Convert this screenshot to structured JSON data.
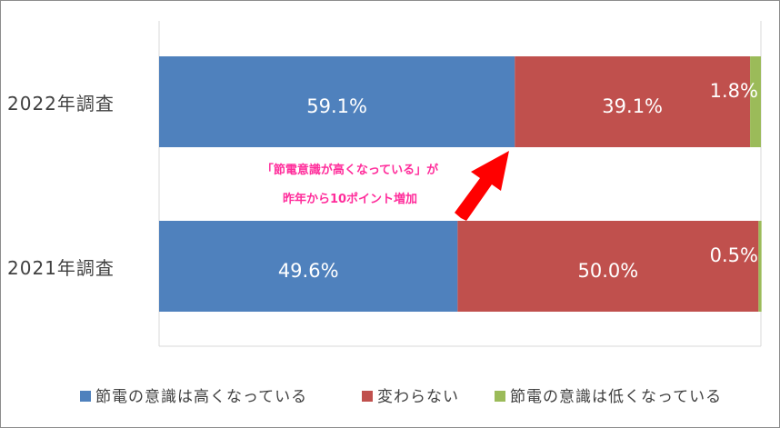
{
  "chart_data": {
    "type": "bar",
    "orientation": "horizontal",
    "stacked": true,
    "categories": [
      "2022年調査",
      "2021年調査"
    ],
    "series": [
      {
        "name": "節電の意識は高くなっている",
        "values": [
          59.1,
          49.6
        ],
        "labels": [
          "59.1%",
          "49.6%"
        ],
        "color": "#4f81bd"
      },
      {
        "name": "変わらない",
        "values": [
          39.1,
          50.0
        ],
        "labels": [
          "39.1%",
          "50.0%"
        ],
        "color": "#c0504d"
      },
      {
        "name": "節電の意識は低くなっている",
        "values": [
          1.8,
          0.5
        ],
        "labels": [
          "1.8%",
          "0.5%"
        ],
        "color": "#9bbb59"
      }
    ],
    "xlim": [
      0,
      100
    ],
    "legend_position": "bottom",
    "annotation": {
      "lines": [
        "「節電意識が高くなっている」が",
        "昨年から10ポイント増加"
      ],
      "color": "#ff2d9b",
      "arrow_color": "#ff0000"
    }
  }
}
